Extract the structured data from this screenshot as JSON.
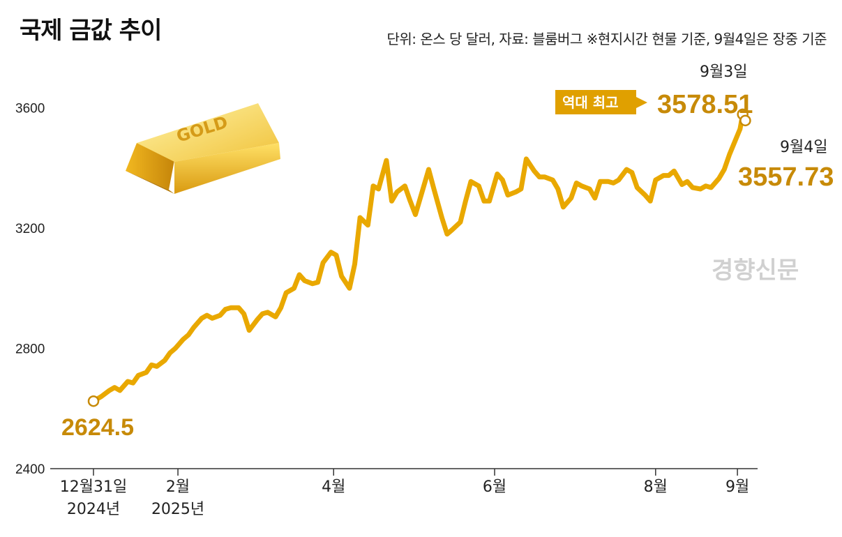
{
  "header": {
    "title": "국제 금값 추이",
    "note": "단위: 온스 당 달러, 자료: 블룸버그 ※현지시간 현물 기준, 9월4일은 장중 기준"
  },
  "watermark": "경향신문",
  "gold_bar_label": "GOLD",
  "colors": {
    "line": "#e9a800",
    "value_text": "#c78a08",
    "badge": "#e0a000",
    "axis": "#333333"
  },
  "annotations": {
    "start": {
      "value": "2624.5"
    },
    "peak": {
      "date": "9월3일",
      "badge": "역대 최고",
      "value": "3578.51"
    },
    "end": {
      "date": "9월4일",
      "value": "3557.73"
    }
  },
  "chart_data": {
    "type": "line",
    "title": "국제 금값 추이",
    "ylabel": "",
    "xlabel": "",
    "ylim": [
      2400,
      3620
    ],
    "yticks": [
      2400,
      2800,
      3200,
      3600
    ],
    "xlim": [
      "2024-12-31",
      "2025-09-06"
    ],
    "xticks": [
      {
        "date": "2024-12-31",
        "label": [
          "12월31일",
          "2024년"
        ]
      },
      {
        "date": "2025-02-01",
        "label": [
          "2월",
          "2025년"
        ]
      },
      {
        "date": "2025-04-01",
        "label": [
          "4월"
        ]
      },
      {
        "date": "2025-06-01",
        "label": [
          "6월"
        ]
      },
      {
        "date": "2025-08-01",
        "label": [
          "8월"
        ]
      },
      {
        "date": "2025-09-01",
        "label": [
          "9월"
        ]
      }
    ],
    "grid": false,
    "series": [
      {
        "points": [
          [
            "2024-12-31",
            2624.5
          ],
          [
            "2025-01-03",
            2640
          ],
          [
            "2025-01-06",
            2660
          ],
          [
            "2025-01-08",
            2670
          ],
          [
            "2025-01-10",
            2660
          ],
          [
            "2025-01-13",
            2690
          ],
          [
            "2025-01-15",
            2685
          ],
          [
            "2025-01-17",
            2710
          ],
          [
            "2025-01-20",
            2720
          ],
          [
            "2025-01-22",
            2745
          ],
          [
            "2025-01-24",
            2740
          ],
          [
            "2025-01-27",
            2760
          ],
          [
            "2025-01-29",
            2785
          ],
          [
            "2025-01-31",
            2800
          ],
          [
            "2025-02-03",
            2830
          ],
          [
            "2025-02-05",
            2845
          ],
          [
            "2025-02-07",
            2870
          ],
          [
            "2025-02-10",
            2900
          ],
          [
            "2025-02-12",
            2910
          ],
          [
            "2025-02-14",
            2900
          ],
          [
            "2025-02-17",
            2910
          ],
          [
            "2025-02-19",
            2930
          ],
          [
            "2025-02-21",
            2935
          ],
          [
            "2025-02-24",
            2935
          ],
          [
            "2025-02-26",
            2915
          ],
          [
            "2025-02-28",
            2860
          ],
          [
            "2025-03-03",
            2895
          ],
          [
            "2025-03-05",
            2915
          ],
          [
            "2025-03-07",
            2920
          ],
          [
            "2025-03-10",
            2905
          ],
          [
            "2025-03-12",
            2935
          ],
          [
            "2025-03-14",
            2985
          ],
          [
            "2025-03-17",
            3000
          ],
          [
            "2025-03-19",
            3045
          ],
          [
            "2025-03-21",
            3025
          ],
          [
            "2025-03-24",
            3015
          ],
          [
            "2025-03-26",
            3020
          ],
          [
            "2025-03-28",
            3085
          ],
          [
            "2025-03-31",
            3120
          ],
          [
            "2025-04-02",
            3110
          ],
          [
            "2025-04-04",
            3040
          ],
          [
            "2025-04-07",
            3000
          ],
          [
            "2025-04-09",
            3080
          ],
          [
            "2025-04-11",
            3235
          ],
          [
            "2025-04-14",
            3210
          ],
          [
            "2025-04-16",
            3340
          ],
          [
            "2025-04-18",
            3330
          ],
          [
            "2025-04-21",
            3425
          ],
          [
            "2025-04-23",
            3290
          ],
          [
            "2025-04-25",
            3320
          ],
          [
            "2025-04-28",
            3340
          ],
          [
            "2025-04-30",
            3290
          ],
          [
            "2025-05-02",
            3245
          ],
          [
            "2025-05-05",
            3335
          ],
          [
            "2025-05-07",
            3395
          ],
          [
            "2025-05-09",
            3330
          ],
          [
            "2025-05-12",
            3235
          ],
          [
            "2025-05-14",
            3180
          ],
          [
            "2025-05-16",
            3195
          ],
          [
            "2025-05-19",
            3220
          ],
          [
            "2025-05-21",
            3290
          ],
          [
            "2025-05-23",
            3355
          ],
          [
            "2025-05-26",
            3340
          ],
          [
            "2025-05-28",
            3290
          ],
          [
            "2025-05-30",
            3290
          ],
          [
            "2025-06-02",
            3380
          ],
          [
            "2025-06-04",
            3360
          ],
          [
            "2025-06-06",
            3310
          ],
          [
            "2025-06-09",
            3320
          ],
          [
            "2025-06-11",
            3330
          ],
          [
            "2025-06-13",
            3430
          ],
          [
            "2025-06-16",
            3390
          ],
          [
            "2025-06-18",
            3370
          ],
          [
            "2025-06-20",
            3370
          ],
          [
            "2025-06-23",
            3360
          ],
          [
            "2025-06-25",
            3330
          ],
          [
            "2025-06-27",
            3270
          ],
          [
            "2025-06-30",
            3300
          ],
          [
            "2025-07-02",
            3350
          ],
          [
            "2025-07-04",
            3340
          ],
          [
            "2025-07-07",
            3330
          ],
          [
            "2025-07-09",
            3300
          ],
          [
            "2025-07-11",
            3355
          ],
          [
            "2025-07-14",
            3355
          ],
          [
            "2025-07-16",
            3350
          ],
          [
            "2025-07-18",
            3360
          ],
          [
            "2025-07-21",
            3395
          ],
          [
            "2025-07-23",
            3385
          ],
          [
            "2025-07-25",
            3335
          ],
          [
            "2025-07-28",
            3310
          ],
          [
            "2025-07-30",
            3290
          ],
          [
            "2025-08-01",
            3360
          ],
          [
            "2025-08-04",
            3375
          ],
          [
            "2025-08-06",
            3375
          ],
          [
            "2025-08-08",
            3390
          ],
          [
            "2025-08-11",
            3345
          ],
          [
            "2025-08-13",
            3355
          ],
          [
            "2025-08-15",
            3335
          ],
          [
            "2025-08-18",
            3330
          ],
          [
            "2025-08-20",
            3340
          ],
          [
            "2025-08-22",
            3335
          ],
          [
            "2025-08-25",
            3365
          ],
          [
            "2025-08-27",
            3395
          ],
          [
            "2025-08-29",
            3445
          ],
          [
            "2025-09-02",
            3530
          ],
          [
            "2025-09-03",
            3578.51
          ],
          [
            "2025-09-04",
            3557.73
          ]
        ]
      }
    ]
  }
}
